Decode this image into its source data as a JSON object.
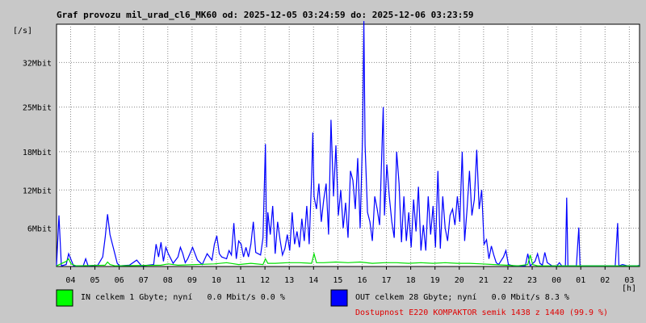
{
  "chart_data": {
    "type": "line",
    "title": "Graf provozu mil_urad_cl6_MK60 od: 2025-12-05 03:24:59 do: 2025-12-06 03:23:59",
    "ylabel": "[/s]",
    "xlabel": "[h]",
    "ylim": [
      0,
      38
    ],
    "y_ticks": [
      {
        "value": 6,
        "label": "6Mbit"
      },
      {
        "value": 12,
        "label": "12Mbit"
      },
      {
        "value": 18,
        "label": "18Mbit"
      },
      {
        "value": 25,
        "label": "25Mbit"
      },
      {
        "value": 32,
        "label": "32Mbit"
      }
    ],
    "x_range_hours": [
      0,
      24
    ],
    "x_ticks": [
      {
        "offset": 0.58,
        "label": "04"
      },
      {
        "offset": 1.58,
        "label": "05"
      },
      {
        "offset": 2.58,
        "label": "06"
      },
      {
        "offset": 3.58,
        "label": "07"
      },
      {
        "offset": 4.58,
        "label": "08"
      },
      {
        "offset": 5.58,
        "label": "09"
      },
      {
        "offset": 6.58,
        "label": "10"
      },
      {
        "offset": 7.58,
        "label": "11"
      },
      {
        "offset": 8.58,
        "label": "12"
      },
      {
        "offset": 9.58,
        "label": "13"
      },
      {
        "offset": 10.58,
        "label": "14"
      },
      {
        "offset": 11.58,
        "label": "15"
      },
      {
        "offset": 12.58,
        "label": "16"
      },
      {
        "offset": 13.58,
        "label": "17"
      },
      {
        "offset": 14.58,
        "label": "18"
      },
      {
        "offset": 15.58,
        "label": "19"
      },
      {
        "offset": 16.58,
        "label": "20"
      },
      {
        "offset": 17.58,
        "label": "21"
      },
      {
        "offset": 18.58,
        "label": "22"
      },
      {
        "offset": 19.58,
        "label": "23"
      },
      {
        "offset": 20.58,
        "label": "00"
      },
      {
        "offset": 21.58,
        "label": "01"
      },
      {
        "offset": 22.58,
        "label": "02"
      },
      {
        "offset": 23.58,
        "label": "03"
      }
    ],
    "series": [
      {
        "name": "OUT",
        "color": "#0000ff",
        "points": [
          [
            0.0,
            0.1
          ],
          [
            0.1,
            8
          ],
          [
            0.2,
            0.1
          ],
          [
            0.4,
            0.3
          ],
          [
            0.5,
            2
          ],
          [
            0.7,
            0.1
          ],
          [
            1.1,
            0.1
          ],
          [
            1.2,
            1.2
          ],
          [
            1.3,
            0.1
          ],
          [
            1.7,
            0.2
          ],
          [
            1.9,
            1.5
          ],
          [
            2.0,
            4.5
          ],
          [
            2.1,
            8.2
          ],
          [
            2.2,
            5
          ],
          [
            2.3,
            3.5
          ],
          [
            2.4,
            2
          ],
          [
            2.5,
            0.5
          ],
          [
            2.6,
            0.1
          ],
          [
            3.0,
            0.2
          ],
          [
            3.3,
            1
          ],
          [
            3.5,
            0.1
          ],
          [
            4.0,
            0.3
          ],
          [
            4.1,
            3.5
          ],
          [
            4.2,
            1.5
          ],
          [
            4.3,
            3.8
          ],
          [
            4.4,
            0.8
          ],
          [
            4.5,
            3
          ],
          [
            4.6,
            2
          ],
          [
            4.8,
            0.5
          ],
          [
            5.0,
            1.5
          ],
          [
            5.1,
            3
          ],
          [
            5.2,
            2
          ],
          [
            5.3,
            0.6
          ],
          [
            5.4,
            1.2
          ],
          [
            5.6,
            3
          ],
          [
            5.8,
            1
          ],
          [
            6.0,
            0.3
          ],
          [
            6.2,
            2
          ],
          [
            6.4,
            1
          ],
          [
            6.5,
            3.5
          ],
          [
            6.6,
            4.8
          ],
          [
            6.7,
            2
          ],
          [
            6.8,
            1.5
          ],
          [
            7.0,
            1.2
          ],
          [
            7.1,
            2.5
          ],
          [
            7.2,
            1.8
          ],
          [
            7.3,
            6.8
          ],
          [
            7.4,
            1.2
          ],
          [
            7.5,
            4
          ],
          [
            7.6,
            3.5
          ],
          [
            7.7,
            1.5
          ],
          [
            7.8,
            3
          ],
          [
            7.9,
            1.5
          ],
          [
            8.0,
            3.5
          ],
          [
            8.1,
            7
          ],
          [
            8.2,
            2.2
          ],
          [
            8.3,
            2
          ],
          [
            8.4,
            1.8
          ],
          [
            8.5,
            4.5
          ],
          [
            8.6,
            19.2
          ],
          [
            8.65,
            3
          ],
          [
            8.7,
            8.5
          ],
          [
            8.8,
            5
          ],
          [
            8.9,
            9.5
          ],
          [
            9.0,
            2
          ],
          [
            9.1,
            7
          ],
          [
            9.2,
            4.2
          ],
          [
            9.3,
            1.8
          ],
          [
            9.4,
            2.8
          ],
          [
            9.5,
            5
          ],
          [
            9.6,
            2.5
          ],
          [
            9.7,
            8.5
          ],
          [
            9.8,
            3.5
          ],
          [
            9.9,
            5.5
          ],
          [
            10.0,
            3
          ],
          [
            10.1,
            7.5
          ],
          [
            10.2,
            4
          ],
          [
            10.3,
            9.5
          ],
          [
            10.4,
            3.5
          ],
          [
            10.5,
            14
          ],
          [
            10.55,
            21
          ],
          [
            10.6,
            11
          ],
          [
            10.7,
            9
          ],
          [
            10.8,
            13
          ],
          [
            10.9,
            7
          ],
          [
            11.0,
            10.5
          ],
          [
            11.1,
            13
          ],
          [
            11.2,
            5
          ],
          [
            11.3,
            23
          ],
          [
            11.4,
            11
          ],
          [
            11.5,
            19
          ],
          [
            11.6,
            8
          ],
          [
            11.7,
            12
          ],
          [
            11.8,
            6
          ],
          [
            11.9,
            10
          ],
          [
            12.0,
            4.5
          ],
          [
            12.1,
            15
          ],
          [
            12.2,
            13.5
          ],
          [
            12.3,
            9
          ],
          [
            12.4,
            17
          ],
          [
            12.5,
            6
          ],
          [
            12.6,
            21
          ],
          [
            12.65,
            38.5
          ],
          [
            12.7,
            19
          ],
          [
            12.8,
            8.5
          ],
          [
            12.9,
            7
          ],
          [
            13.0,
            4
          ],
          [
            13.1,
            11
          ],
          [
            13.2,
            9
          ],
          [
            13.3,
            6.5
          ],
          [
            13.4,
            19
          ],
          [
            13.45,
            25
          ],
          [
            13.5,
            8
          ],
          [
            13.6,
            16
          ],
          [
            13.7,
            11
          ],
          [
            13.8,
            7
          ],
          [
            13.9,
            4.5
          ],
          [
            14.0,
            18
          ],
          [
            14.1,
            13
          ],
          [
            14.2,
            3.8
          ],
          [
            14.3,
            11
          ],
          [
            14.4,
            4
          ],
          [
            14.5,
            8.5
          ],
          [
            14.6,
            3
          ],
          [
            14.7,
            10.5
          ],
          [
            14.8,
            5.5
          ],
          [
            14.9,
            12.5
          ],
          [
            15.0,
            2.5
          ],
          [
            15.1,
            6.5
          ],
          [
            15.2,
            2.5
          ],
          [
            15.3,
            11
          ],
          [
            15.4,
            5
          ],
          [
            15.5,
            9.5
          ],
          [
            15.6,
            3
          ],
          [
            15.7,
            15
          ],
          [
            15.8,
            2.8
          ],
          [
            15.9,
            11
          ],
          [
            16.0,
            6
          ],
          [
            16.1,
            4
          ],
          [
            16.2,
            8
          ],
          [
            16.3,
            9
          ],
          [
            16.4,
            6.5
          ],
          [
            16.5,
            11
          ],
          [
            16.6,
            7
          ],
          [
            16.7,
            18
          ],
          [
            16.8,
            4
          ],
          [
            16.9,
            9
          ],
          [
            17.0,
            15
          ],
          [
            17.1,
            8
          ],
          [
            17.2,
            10.5
          ],
          [
            17.3,
            18.3
          ],
          [
            17.4,
            9
          ],
          [
            17.5,
            12
          ],
          [
            17.6,
            3.5
          ],
          [
            17.7,
            4.2
          ],
          [
            17.8,
            1.2
          ],
          [
            17.9,
            3.2
          ],
          [
            18.0,
            1.8
          ],
          [
            18.1,
            0.6
          ],
          [
            18.2,
            0.3
          ],
          [
            18.4,
            1.5
          ],
          [
            18.5,
            2.5
          ],
          [
            18.6,
            0.3
          ],
          [
            18.8,
            0.1
          ],
          [
            19.3,
            0.1
          ],
          [
            19.4,
            2
          ],
          [
            19.5,
            0.1
          ],
          [
            19.7,
            0.8
          ],
          [
            19.8,
            2
          ],
          [
            19.9,
            0.5
          ],
          [
            20.0,
            0.2
          ],
          [
            20.1,
            2.2
          ],
          [
            20.2,
            0.6
          ],
          [
            20.4,
            0.1
          ],
          [
            20.6,
            0.1
          ],
          [
            20.7,
            0.6
          ],
          [
            20.8,
            0.1
          ],
          [
            20.95,
            0.1
          ],
          [
            21.0,
            10.8
          ],
          [
            21.05,
            0.1
          ],
          [
            21.4,
            0.1
          ],
          [
            21.5,
            6.1
          ],
          [
            21.55,
            0.1
          ],
          [
            22.0,
            0.1
          ],
          [
            22.5,
            0.1
          ],
          [
            23.0,
            0.1
          ],
          [
            23.1,
            6.8
          ],
          [
            23.15,
            0.1
          ],
          [
            23.3,
            0.3
          ],
          [
            23.5,
            0.1
          ],
          [
            23.9,
            0.1
          ],
          [
            24.0,
            0.2
          ]
        ]
      },
      {
        "name": "IN",
        "color": "#00e000",
        "points": [
          [
            0.0,
            0.1
          ],
          [
            0.4,
            0.8
          ],
          [
            0.5,
            1.2
          ],
          [
            0.6,
            0.4
          ],
          [
            0.8,
            0.1
          ],
          [
            2.0,
            0.2
          ],
          [
            2.1,
            0.7
          ],
          [
            2.2,
            0.3
          ],
          [
            2.4,
            0.1
          ],
          [
            4.3,
            0.2
          ],
          [
            4.6,
            0.4
          ],
          [
            5.0,
            0.2
          ],
          [
            6.5,
            0.4
          ],
          [
            7.0,
            0.6
          ],
          [
            7.5,
            0.3
          ],
          [
            8.0,
            0.5
          ],
          [
            8.5,
            0.3
          ],
          [
            8.6,
            1.2
          ],
          [
            8.7,
            0.5
          ],
          [
            9.0,
            0.5
          ],
          [
            9.5,
            0.6
          ],
          [
            10.0,
            0.6
          ],
          [
            10.5,
            0.5
          ],
          [
            10.6,
            2
          ],
          [
            10.7,
            0.6
          ],
          [
            11.0,
            0.6
          ],
          [
            11.5,
            0.7
          ],
          [
            12.0,
            0.6
          ],
          [
            12.5,
            0.7
          ],
          [
            13.0,
            0.5
          ],
          [
            13.5,
            0.6
          ],
          [
            14.0,
            0.6
          ],
          [
            14.5,
            0.5
          ],
          [
            15.0,
            0.6
          ],
          [
            15.5,
            0.5
          ],
          [
            16.0,
            0.6
          ],
          [
            16.5,
            0.5
          ],
          [
            17.0,
            0.5
          ],
          [
            17.5,
            0.4
          ],
          [
            18.0,
            0.3
          ],
          [
            18.5,
            0.2
          ],
          [
            19.0,
            0.1
          ],
          [
            19.4,
            0.3
          ],
          [
            19.5,
            1.8
          ],
          [
            19.6,
            0.3
          ],
          [
            19.8,
            0.1
          ],
          [
            24.0,
            0.1
          ]
        ]
      }
    ]
  },
  "legend": {
    "in_text": "IN celkem 1 Gbyte; nyní   0.0 Mbit/s 0.0 %",
    "in_color": "#00ff00",
    "out_text": "OUT celkem 28 Gbyte; nyní   0.0 Mbit/s 8.3 %",
    "out_color": "#0000ff",
    "availability_text": "Dostupnost E220 KOMPAKTOR semik 1438 z 1440 (99.9 %)",
    "availability_color": "#e00000"
  }
}
